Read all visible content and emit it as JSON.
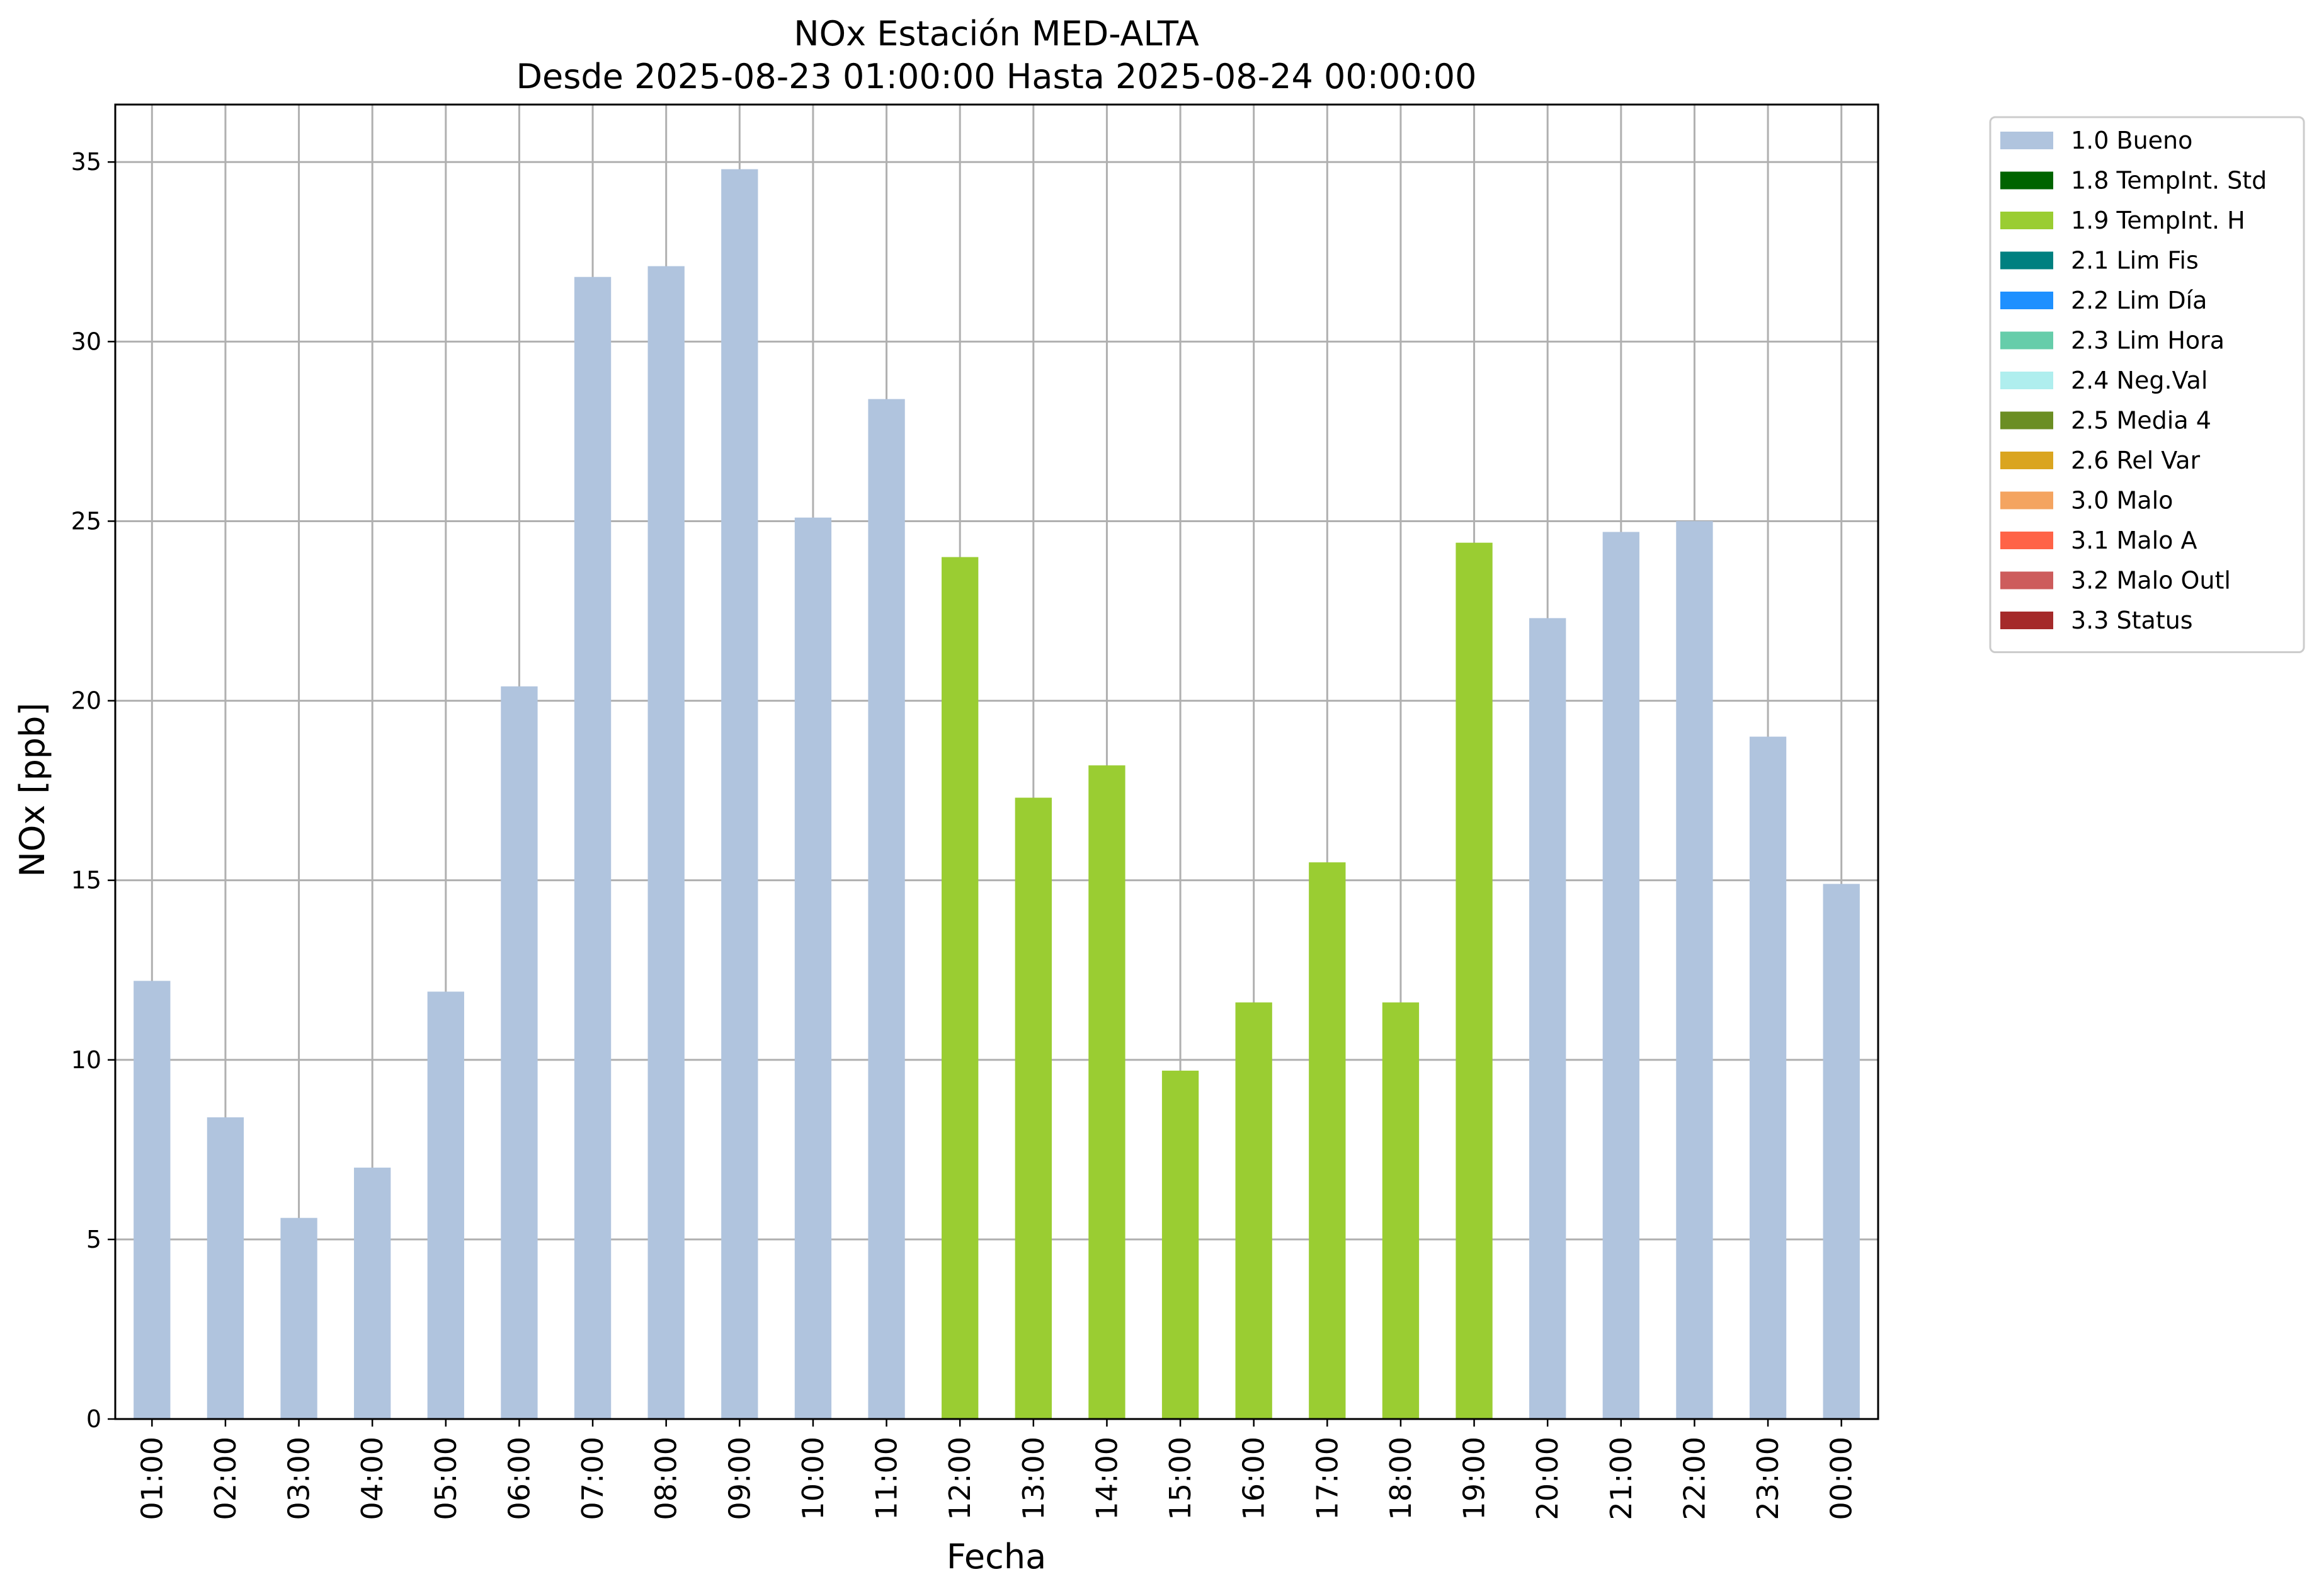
{
  "chart_data": {
    "type": "bar",
    "title": "NOx Estación MED-ALTA",
    "subtitle": "Desde 2025-08-23 01:00:00 Hasta 2025-08-24 00:00:00",
    "xlabel": "Fecha",
    "ylabel": "NOx [ppb]",
    "ylim": [
      0,
      36.6
    ],
    "yticks": [
      0,
      5,
      10,
      15,
      20,
      25,
      30,
      35
    ],
    "grid": true,
    "legend_position": "outside-right-top",
    "categories": [
      "01:00",
      "02:00",
      "03:00",
      "04:00",
      "05:00",
      "06:00",
      "07:00",
      "08:00",
      "09:00",
      "10:00",
      "11:00",
      "12:00",
      "13:00",
      "14:00",
      "15:00",
      "16:00",
      "17:00",
      "18:00",
      "19:00",
      "20:00",
      "21:00",
      "22:00",
      "23:00",
      "00:00"
    ],
    "values": [
      12.2,
      8.4,
      5.6,
      7.0,
      11.9,
      20.4,
      31.8,
      32.1,
      34.8,
      25.1,
      28.4,
      24.0,
      17.3,
      18.2,
      9.7,
      11.6,
      15.5,
      11.6,
      24.4,
      22.3,
      24.7,
      25.0,
      19.0,
      14.9
    ],
    "flags": [
      "1.0 Bueno",
      "1.0 Bueno",
      "1.0 Bueno",
      "1.0 Bueno",
      "1.0 Bueno",
      "1.0 Bueno",
      "1.0 Bueno",
      "1.0 Bueno",
      "1.0 Bueno",
      "1.0 Bueno",
      "1.0 Bueno",
      "1.9 TempInt. H",
      "1.9 TempInt. H",
      "1.9 TempInt. H",
      "1.9 TempInt. H",
      "1.9 TempInt. H",
      "1.9 TempInt. H",
      "1.9 TempInt. H",
      "1.9 TempInt. H",
      "1.0 Bueno",
      "1.0 Bueno",
      "1.0 Bueno",
      "1.0 Bueno",
      "1.0 Bueno"
    ],
    "legend": [
      {
        "label": "1.0 Bueno",
        "color": "#b0c4de"
      },
      {
        "label": "1.8 TempInt. Std",
        "color": "#006400"
      },
      {
        "label": "1.9 TempInt. H",
        "color": "#9acd32"
      },
      {
        "label": "2.1 Lim Fis",
        "color": "#008080"
      },
      {
        "label": "2.2 Lim Día",
        "color": "#1e90ff"
      },
      {
        "label": "2.3 Lim Hora",
        "color": "#66cdaa"
      },
      {
        "label": "2.4 Neg.Val",
        "color": "#afeeee"
      },
      {
        "label": "2.5 Media 4",
        "color": "#6b8e23"
      },
      {
        "label": "2.6 Rel Var",
        "color": "#daa520"
      },
      {
        "label": "3.0 Malo",
        "color": "#f4a460"
      },
      {
        "label": "3.1 Malo A",
        "color": "#ff6347"
      },
      {
        "label": "3.2 Malo Outl",
        "color": "#cd5c5c"
      },
      {
        "label": "3.3 Status",
        "color": "#a52a2a"
      }
    ]
  }
}
